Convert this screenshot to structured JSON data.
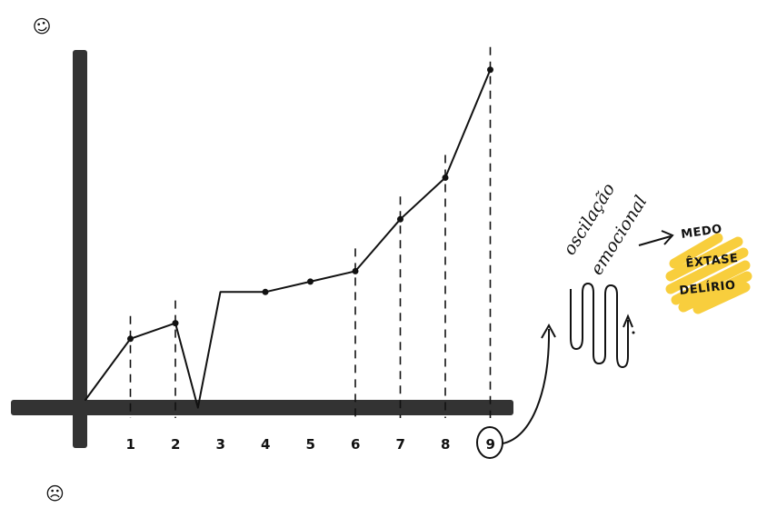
{
  "chart_data": {
    "type": "line",
    "x_tick_labels": [
      "1",
      "2",
      "3",
      "4",
      "5",
      "6",
      "7",
      "8",
      "9"
    ],
    "highlight_tick": "9",
    "points": [
      {
        "x": 0,
        "y": 0
      },
      {
        "x": 1,
        "y": 4.7
      },
      {
        "x": 2,
        "y": 5.9
      },
      {
        "x": 2.5,
        "y": -0.6
      },
      {
        "x": 3,
        "y": 8.3
      },
      {
        "x": 4,
        "y": 8.3
      },
      {
        "x": 5,
        "y": 9.1
      },
      {
        "x": 6,
        "y": 9.9
      },
      {
        "x": 7,
        "y": 13.9
      },
      {
        "x": 8,
        "y": 17.1
      },
      {
        "x": 9,
        "y": 25.4
      }
    ],
    "marked_x": [
      1,
      2,
      4,
      5,
      6,
      7,
      8,
      9
    ],
    "dashed_guides_x": [
      1,
      2,
      6,
      7,
      8,
      9
    ],
    "line_color": "#111111",
    "axis_color": "#333333"
  },
  "annotations": {
    "top_face": "☺",
    "bottom_face": "☹",
    "emotion_label_line1": "oscilação",
    "emotion_label_line2": "emocional",
    "states": [
      "MEDO",
      "ÊXTASE",
      "DELÍRIO"
    ],
    "highlight_color": "#f7c928"
  }
}
